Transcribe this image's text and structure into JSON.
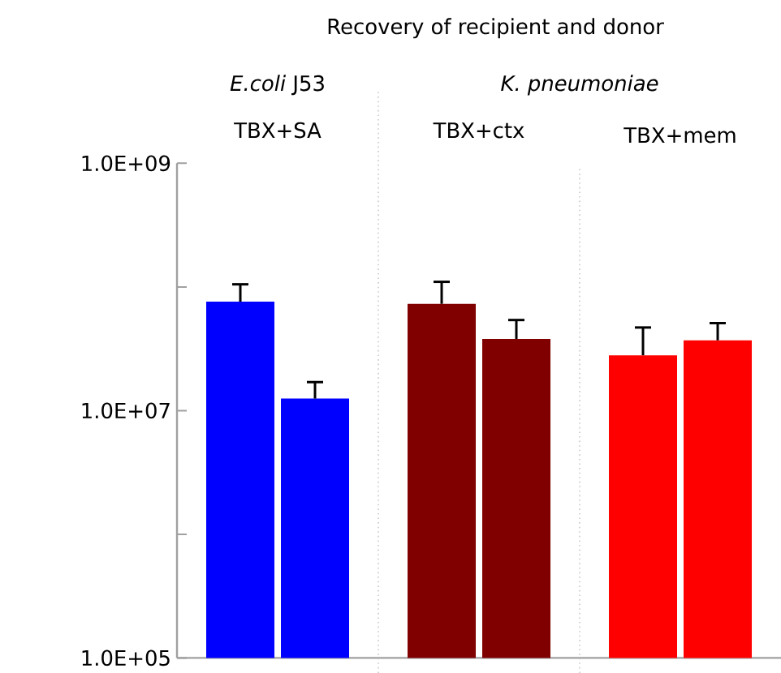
{
  "chart_data": {
    "type": "bar",
    "title": "Recovery of recipient and donor",
    "categories": [
      "TBX+SA",
      "TBX+ctx",
      "TBX+mem"
    ],
    "series": [
      {
        "colors": [
          "#0000ff",
          "#800000",
          "#ff0000"
        ],
        "values": [
          76000000,
          73000000,
          28000000
        ],
        "errors": [
          [
            76000000,
            105000000
          ],
          [
            73000000,
            110000000
          ],
          [
            28000000,
            47000000
          ]
        ]
      },
      {
        "colors": [
          "#0000ff",
          "#800000",
          "#ff0000"
        ],
        "values": [
          12500000,
          38000000,
          37000000
        ],
        "errors": [
          [
            12500000,
            17000000
          ],
          [
            38000000,
            54000000
          ],
          [
            37000000,
            51000000
          ]
        ]
      }
    ],
    "annotations": [
      "*E.coli* J53",
      "*K. pneumoniae*"
    ],
    "log": "y",
    "ylim": [
      100000,
      1000000000
    ],
    "yticks": [
      {
        "value": 100000,
        "label": "1.0E+05"
      },
      {
        "value": 1000000,
        "label": null
      },
      {
        "value": 10000000,
        "label": "1.0E+07"
      },
      {
        "value": 100000000,
        "label": null
      },
      {
        "value": 1000000000,
        "label": "1.0E+09"
      }
    ],
    "grid": false
  }
}
